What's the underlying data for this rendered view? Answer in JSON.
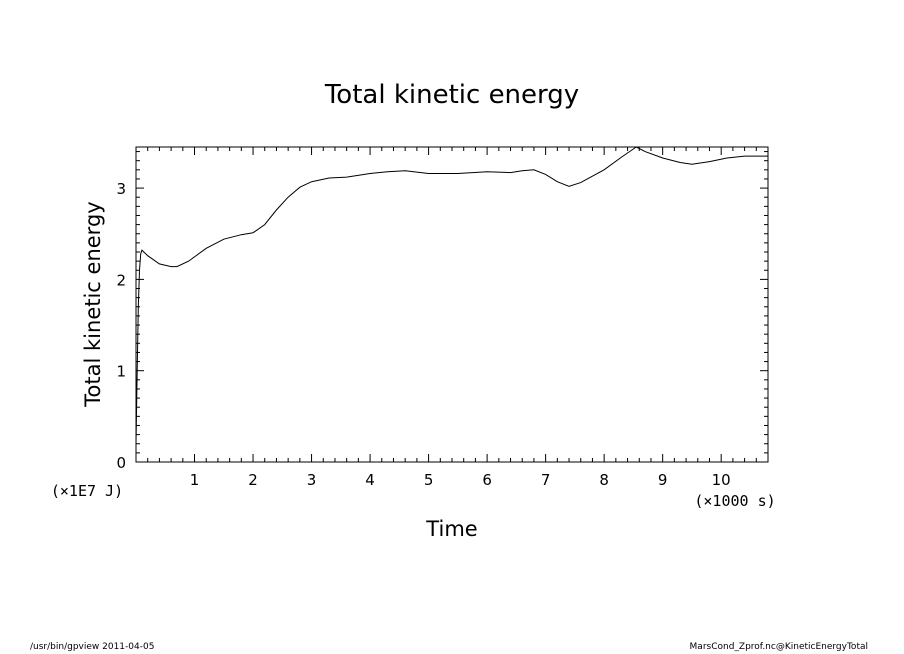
{
  "chart_data": {
    "type": "line",
    "title": "Total kinetic energy",
    "xlabel": "Time",
    "ylabel": "Total kinetic energy",
    "x_unit_label": "(×1000 s)",
    "y_unit_label": "(×1E7 J)",
    "xlim": [
      0,
      10.8
    ],
    "ylim": [
      0,
      3.45
    ],
    "x_ticks": [
      1,
      2,
      3,
      4,
      5,
      6,
      7,
      8,
      9,
      10
    ],
    "y_ticks": [
      0,
      1,
      2,
      3
    ],
    "grid": false,
    "series": [
      {
        "x": [
          0,
          0.02,
          0.04,
          0.06,
          0.08,
          0.1,
          0.2,
          0.4,
          0.6,
          0.7,
          0.9,
          1.2,
          1.5,
          1.8,
          2.0,
          2.2,
          2.4,
          2.6,
          2.8,
          3.0,
          3.3,
          3.6,
          4.0,
          4.3,
          4.6,
          5.0,
          5.5,
          6.0,
          6.4,
          6.6,
          6.8,
          7.0,
          7.2,
          7.4,
          7.6,
          8.0,
          8.3,
          8.55,
          8.7,
          9.0,
          9.3,
          9.5,
          9.8,
          10.1,
          10.4,
          10.8
        ],
        "y": [
          0.2,
          1.0,
          1.7,
          2.1,
          2.28,
          2.32,
          2.26,
          2.17,
          2.14,
          2.14,
          2.2,
          2.34,
          2.44,
          2.49,
          2.51,
          2.6,
          2.76,
          2.9,
          3.01,
          3.07,
          3.11,
          3.12,
          3.16,
          3.18,
          3.19,
          3.16,
          3.16,
          3.18,
          3.17,
          3.19,
          3.2,
          3.15,
          3.07,
          3.02,
          3.06,
          3.2,
          3.34,
          3.45,
          3.4,
          3.33,
          3.28,
          3.26,
          3.29,
          3.33,
          3.35,
          3.35
        ]
      }
    ]
  },
  "footer": {
    "left": "/usr/bin/gpview   2011-04-05",
    "right": "MarsCond_Zprof.nc@KineticEnergyTotal"
  }
}
